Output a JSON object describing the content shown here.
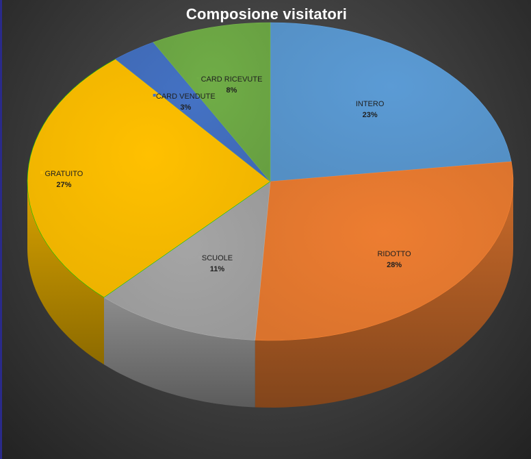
{
  "chart_data": {
    "type": "pie",
    "title": "Composione visitatori",
    "slices": [
      {
        "label": "INTERO",
        "value": 23,
        "display": "23%",
        "color": "#5b9bd5"
      },
      {
        "label": "RIDOTTO",
        "value": 28,
        "display": "28%",
        "color": "#ed7d31"
      },
      {
        "label": "SCUOLE",
        "value": 11,
        "display": "11%",
        "color": "#a5a5a5"
      },
      {
        "label": "GRATUITO",
        "value": 27,
        "display": "27%",
        "color": "#ffc000"
      },
      {
        "label": "CARD VENDUTE",
        "value": 3,
        "display": "3%",
        "color": "#4472c4"
      },
      {
        "label": "CARD RICEVUTE",
        "value": 8,
        "display": "8%",
        "color": "#70ad47"
      }
    ],
    "style": "3d",
    "legend": "none",
    "data_labels": "category-and-percent"
  }
}
